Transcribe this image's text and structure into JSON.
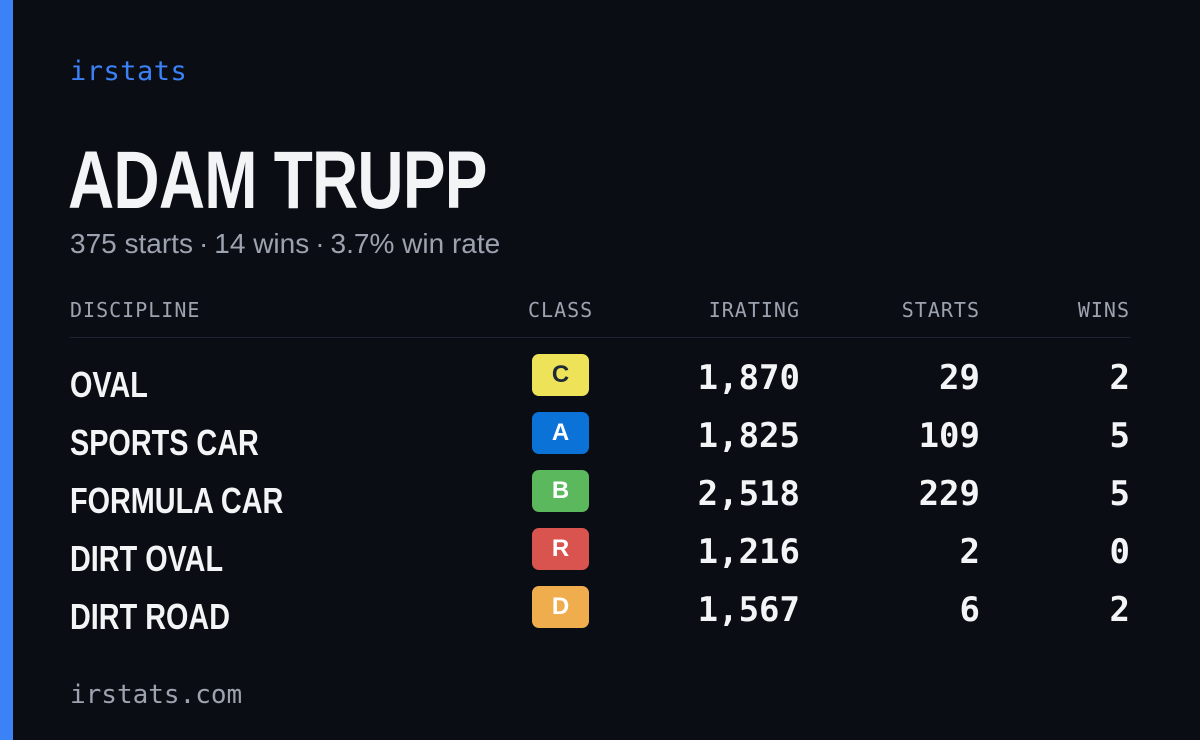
{
  "brand": "irstats",
  "player": {
    "name": "ADAM TRUPP",
    "summary": [
      "375 starts",
      "14 wins",
      "3.7% win rate"
    ],
    "separator": "·"
  },
  "table": {
    "headers": {
      "discipline": "DISCIPLINE",
      "class": "CLASS",
      "irating": "IRATING",
      "starts": "STARTS",
      "wins": "WINS"
    },
    "rows": [
      {
        "discipline": "OVAL",
        "class": "C",
        "class_bg": "#eee358",
        "class_fg": "#1f2937",
        "irating": "1,870",
        "starts": "29",
        "wins": "2"
      },
      {
        "discipline": "SPORTS CAR",
        "class": "A",
        "class_bg": "#0b72d8",
        "class_fg": "#ffffff",
        "irating": "1,825",
        "starts": "109",
        "wins": "5"
      },
      {
        "discipline": "FORMULA CAR",
        "class": "B",
        "class_bg": "#5cb85c",
        "class_fg": "#ffffff",
        "irating": "2,518",
        "starts": "229",
        "wins": "5"
      },
      {
        "discipline": "DIRT OVAL",
        "class": "R",
        "class_bg": "#d9534f",
        "class_fg": "#ffffff",
        "irating": "1,216",
        "starts": "2",
        "wins": "0"
      },
      {
        "discipline": "DIRT ROAD",
        "class": "D",
        "class_bg": "#f0ad4e",
        "class_fg": "#ffffff",
        "irating": "1,567",
        "starts": "6",
        "wins": "2"
      }
    ]
  },
  "footer": "irstats.com",
  "colors": {
    "accent": "#3b82f6",
    "background": "#0b0d14",
    "text": "#f3f4f6",
    "muted": "#9ca3af"
  }
}
